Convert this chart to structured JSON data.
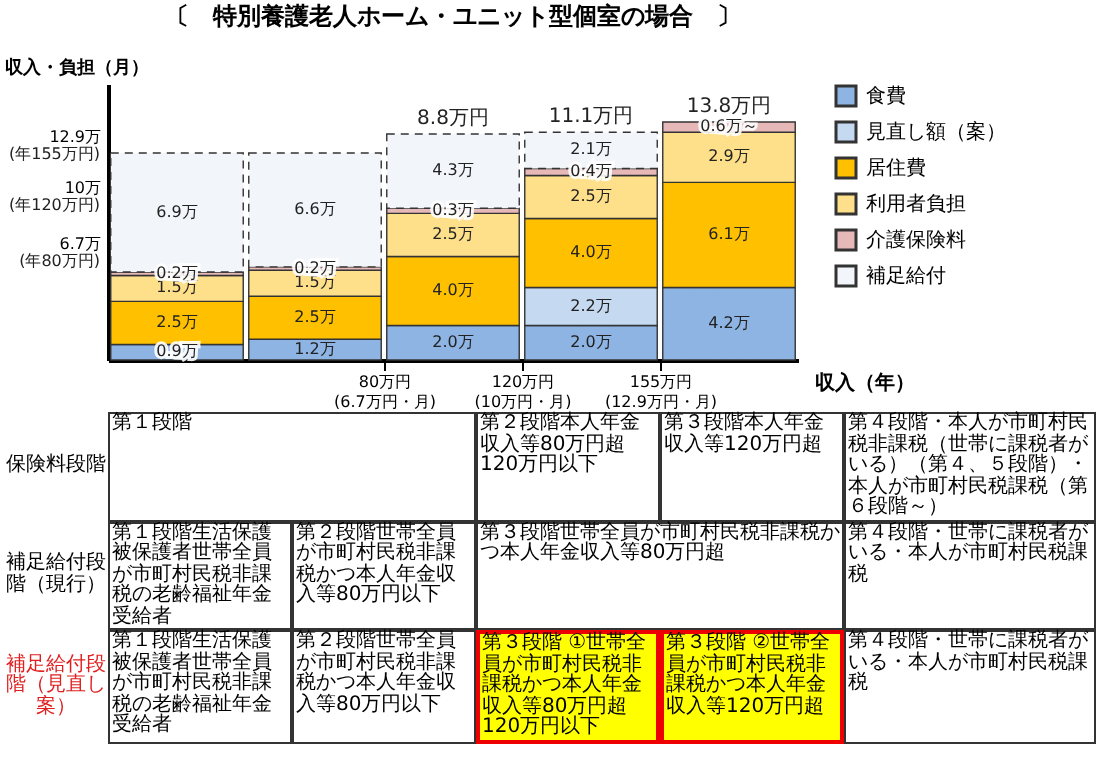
{
  "chart_data": {
    "type": "bar",
    "stacked": true,
    "title": "〔　特別養護老人ホーム・ユニット型個室の場合　〕",
    "xlabel": "収入（年）",
    "ylabel": "収入・負担（月）",
    "categories": [
      null,
      null,
      null,
      null,
      null
    ],
    "ylim": [
      0,
      16
    ],
    "yticks": [
      {
        "value": 6.7,
        "label": "6.7万"
      },
      {
        "value": 10,
        "label": "10万"
      },
      {
        "value": 12.9,
        "label": "12.9万"
      }
    ],
    "series": [
      {
        "name": "食費",
        "color": "#8eb4e3",
        "values": [
          0.9,
          1.2,
          2.0,
          2.0,
          4.2
        ],
        "value_labels": [
          "0.9万",
          "1.2万",
          "2.0万",
          "2.0万",
          "4.2万"
        ]
      },
      {
        "name": "見直し額（案）",
        "color": "#c5d9f1",
        "values": [
          null,
          null,
          null,
          2.2,
          null
        ],
        "value_labels": [
          null,
          null,
          null,
          "2.2万",
          null
        ]
      },
      {
        "name": "居住費",
        "color": "#ffc000",
        "values": [
          2.5,
          2.5,
          4.0,
          4.0,
          6.1
        ],
        "value_labels": [
          "2.5万",
          "2.5万",
          "4.0万",
          "4.0万",
          "6.1万"
        ]
      },
      {
        "name": "利用者負担",
        "color": "#ffe08a",
        "values": [
          1.5,
          1.5,
          2.5,
          2.5,
          2.9
        ],
        "value_labels": [
          "1.5万",
          "1.5万",
          "2.5万",
          "2.5万",
          "2.9万"
        ]
      },
      {
        "name": "介護保険料",
        "color": "#e6b8b7",
        "values": [
          0.2,
          0.2,
          0.3,
          0.4,
          0.6
        ],
        "value_labels": [
          "0.2万",
          "0.2万",
          "0.3万",
          "0.4万",
          "0.6万～"
        ]
      },
      {
        "name": "補足給付",
        "color": "#f2f5fa",
        "line_style": "dashed",
        "values": [
          6.9,
          6.6,
          4.3,
          2.1,
          null
        ],
        "value_labels": [
          "6.9万",
          "6.6万",
          "4.3万",
          "2.1万",
          null
        ]
      }
    ],
    "legend": "right",
    "annotations": [
      "80万円\n(6.7万円・月)",
      "120万円\n(10万円・月)",
      "155万円\n(12.9万円・月)",
      "(年80万円)",
      "(年120万円)",
      "(年155万円)",
      "8.8万円",
      "11.1万円",
      "13.8万円",
      "保険料段階",
      "第１段階",
      "第２段階本人年金収入等80万円超120万円以下",
      "第３段階本人年金収入等120万円超",
      "第４段階・本人が市町村民税非課税（世帯に課税者がいる）（第４、５段階）・本人が市町村民税課税（第６段階～）",
      "補足給付段階（現行）",
      "第１段階生活保護被保護者世帯全員が市町村民税非課税の老齢福祉年金受給者",
      "第２段階世帯全員が市町村民税非課税かつ本人年金収入等80万円以下",
      "第３段階世帯全員が市町村民税非課税かつ本人年金収入等80万円超",
      "第４段階・世帯に課税者がいる・本人が市町村民税課税",
      "補足給付段階（見直し案）",
      "第１段階生活保護被保護者世帯全員が市町村民税非課税の老齢福祉年金受給者",
      "第２段階世帯全員が市町村民税非課税かつ本人年金収入等80万円以下",
      "第３段階 ①世帯全員が市町村民税非課税かつ本人年金収入等80万円超120万円以下",
      "第３段階 ②世帯全員が市町村民税非課税かつ本人年金収入等120万円超",
      "第４段階・世帯に課税者がいる・本人が市町村民税課税"
    ]
  }
}
